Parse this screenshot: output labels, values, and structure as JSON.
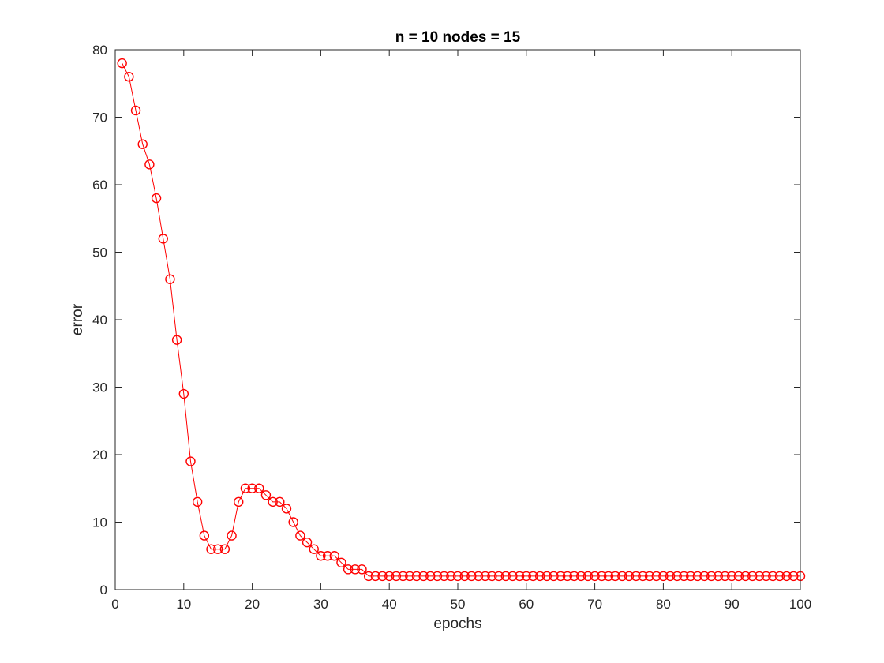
{
  "chart_data": {
    "type": "line",
    "title": "n = 10  nodes = 15",
    "xlabel": "epochs",
    "ylabel": "error",
    "xlim": [
      0,
      100
    ],
    "ylim": [
      0,
      80
    ],
    "xticks": [
      0,
      10,
      20,
      30,
      40,
      50,
      60,
      70,
      80,
      90,
      100
    ],
    "yticks": [
      0,
      10,
      20,
      30,
      40,
      50,
      60,
      70,
      80
    ],
    "grid": false,
    "marker": "circle",
    "line_color": "#ff0000",
    "marker_color": "#ff0000",
    "x": [
      1,
      2,
      3,
      4,
      5,
      6,
      7,
      8,
      9,
      10,
      11,
      12,
      13,
      14,
      15,
      16,
      17,
      18,
      19,
      20,
      21,
      22,
      23,
      24,
      25,
      26,
      27,
      28,
      29,
      30,
      31,
      32,
      33,
      34,
      35,
      36,
      37,
      38,
      39,
      40,
      41,
      42,
      43,
      44,
      45,
      46,
      47,
      48,
      49,
      50,
      51,
      52,
      53,
      54,
      55,
      56,
      57,
      58,
      59,
      60,
      61,
      62,
      63,
      64,
      65,
      66,
      67,
      68,
      69,
      70,
      71,
      72,
      73,
      74,
      75,
      76,
      77,
      78,
      79,
      80,
      81,
      82,
      83,
      84,
      85,
      86,
      87,
      88,
      89,
      90,
      91,
      92,
      93,
      94,
      95,
      96,
      97,
      98,
      99,
      100
    ],
    "y": [
      78,
      76,
      71,
      66,
      63,
      58,
      52,
      46,
      37,
      29,
      19,
      13,
      8,
      6,
      6,
      6,
      8,
      13,
      15,
      15,
      15,
      14,
      13,
      13,
      12,
      10,
      8,
      7,
      6,
      5,
      5,
      5,
      4,
      3,
      3,
      3,
      2,
      2,
      2,
      2,
      2,
      2,
      2,
      2,
      2,
      2,
      2,
      2,
      2,
      2,
      2,
      2,
      2,
      2,
      2,
      2,
      2,
      2,
      2,
      2,
      2,
      2,
      2,
      2,
      2,
      2,
      2,
      2,
      2,
      2,
      2,
      2,
      2,
      2,
      2,
      2,
      2,
      2,
      2,
      2,
      2,
      2,
      2,
      2,
      2,
      2,
      2,
      2,
      2,
      2,
      2,
      2,
      2,
      2,
      2,
      2,
      2,
      2,
      2,
      2
    ]
  }
}
